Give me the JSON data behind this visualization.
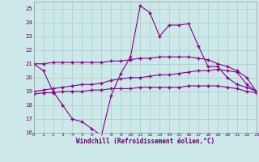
{
  "xlabel": "Windchill (Refroidissement éolien,°C)",
  "x_hours": [
    0,
    1,
    2,
    3,
    4,
    5,
    6,
    7,
    8,
    9,
    10,
    11,
    12,
    13,
    14,
    15,
    16,
    17,
    18,
    19,
    20,
    21,
    22,
    23
  ],
  "line1": [
    21.0,
    20.5,
    19.0,
    18.0,
    17.0,
    16.8,
    16.3,
    15.8,
    18.7,
    20.3,
    21.5,
    25.2,
    24.7,
    23.0,
    23.8,
    23.8,
    23.9,
    22.3,
    20.8,
    20.8,
    20.0,
    19.5,
    19.3,
    19.0
  ],
  "line2": [
    21.0,
    21.0,
    21.1,
    21.1,
    21.1,
    21.1,
    21.1,
    21.1,
    21.2,
    21.2,
    21.3,
    21.4,
    21.4,
    21.5,
    21.5,
    21.5,
    21.5,
    21.4,
    21.3,
    21.0,
    20.8,
    20.5,
    20.0,
    19.0
  ],
  "line3": [
    19.0,
    19.1,
    19.2,
    19.3,
    19.4,
    19.5,
    19.5,
    19.6,
    19.8,
    19.9,
    20.0,
    20.0,
    20.1,
    20.2,
    20.2,
    20.3,
    20.4,
    20.5,
    20.5,
    20.6,
    20.5,
    20.4,
    19.5,
    19.0
  ],
  "line4": [
    18.8,
    18.9,
    18.9,
    19.0,
    19.0,
    19.0,
    19.1,
    19.1,
    19.2,
    19.2,
    19.2,
    19.3,
    19.3,
    19.3,
    19.3,
    19.3,
    19.4,
    19.4,
    19.4,
    19.4,
    19.3,
    19.2,
    19.0,
    18.9
  ],
  "line_color": "#880088",
  "bg_color": "#cce8e8",
  "grid_color": "#aacccc",
  "ylim": [
    16,
    25.5
  ],
  "yticks": [
    16,
    17,
    18,
    19,
    20,
    21,
    22,
    23,
    24,
    25
  ],
  "xtick_labels": [
    "0",
    "1",
    "2",
    "3",
    "4",
    "5",
    "6",
    "7",
    "8",
    "9",
    "10",
    "11",
    "12",
    "13",
    "14",
    "15",
    "16",
    "17",
    "18",
    "19",
    "20",
    "21",
    "22",
    "23"
  ]
}
